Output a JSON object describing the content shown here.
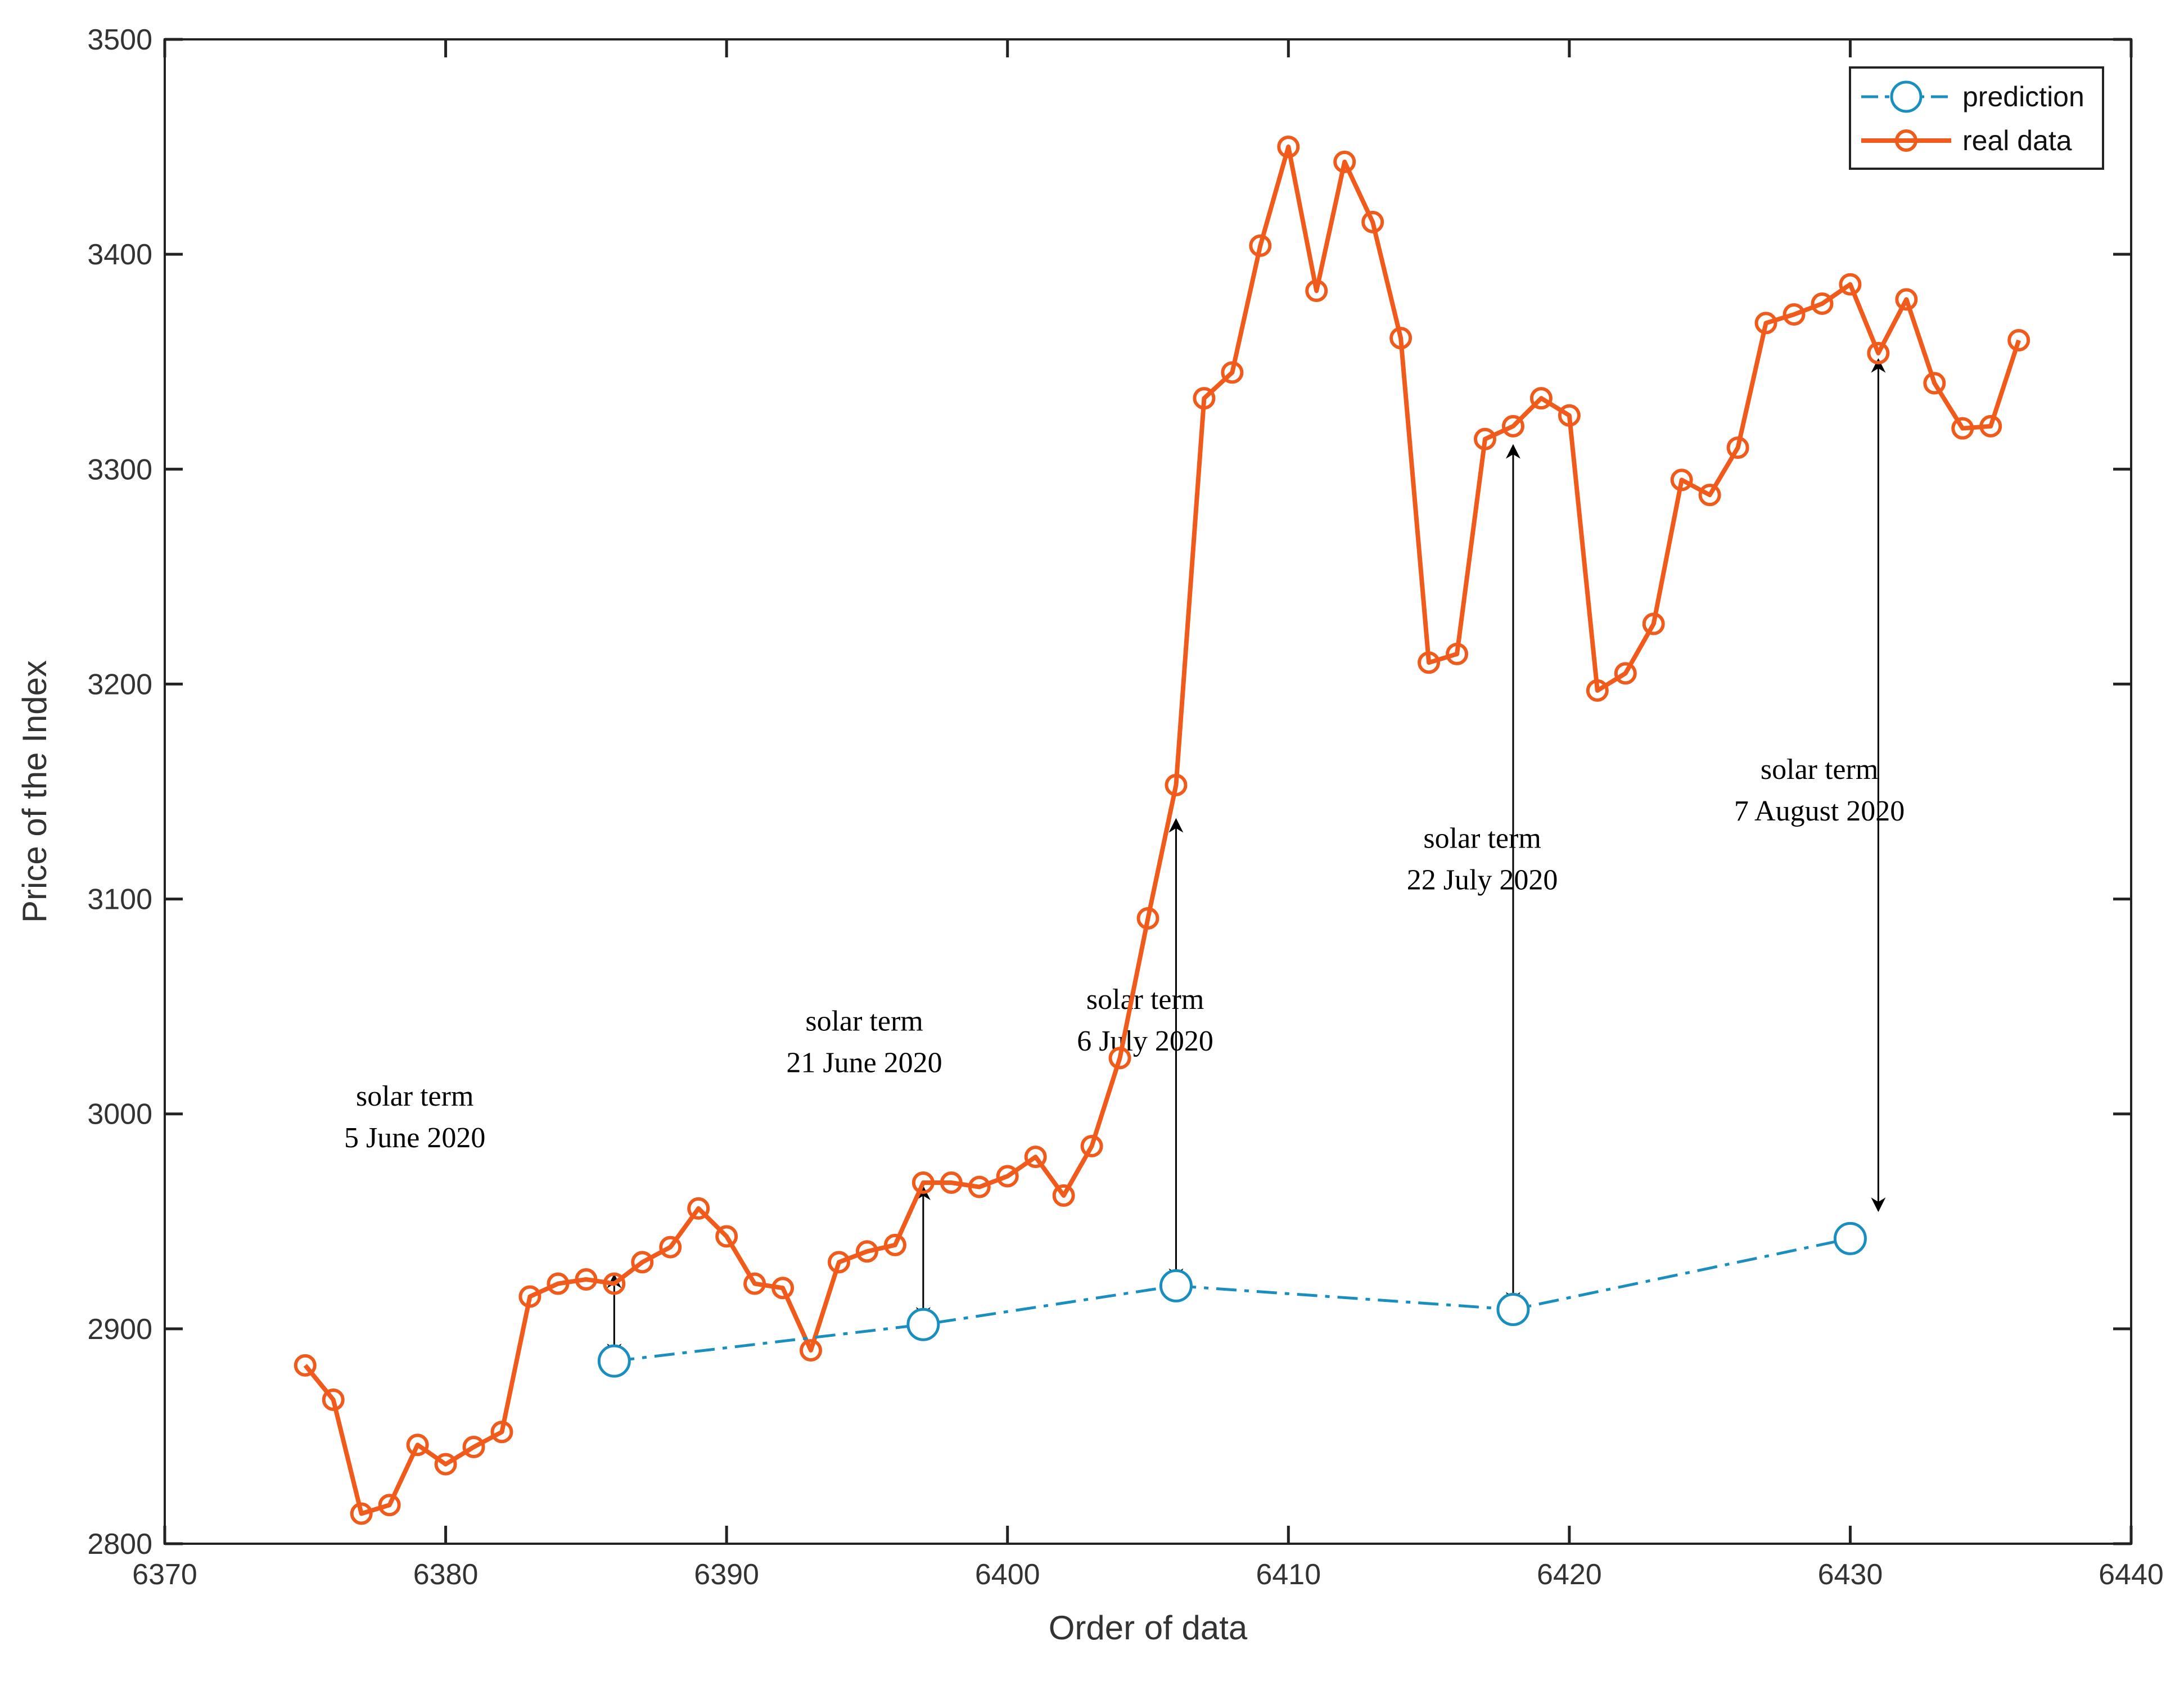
{
  "chart_data": {
    "type": "line",
    "title": "",
    "xlabel": "Order of data",
    "ylabel": "Price of the Index",
    "xlim": [
      6370,
      6440
    ],
    "ylim": [
      2800,
      3500
    ],
    "xticks": [
      6370,
      6380,
      6390,
      6400,
      6410,
      6420,
      6430,
      6440
    ],
    "yticks": [
      2800,
      2900,
      3000,
      3100,
      3200,
      3300,
      3400,
      3500
    ],
    "xtick_labels": [
      "6370",
      "6380",
      "6390",
      "6400",
      "6410",
      "6420",
      "6430",
      "6440"
    ],
    "ytick_labels": [
      "2800",
      "2900",
      "3000",
      "3100",
      "3200",
      "3300",
      "3400",
      "3500"
    ],
    "grid": false,
    "legend_position": "top-right",
    "series": [
      {
        "name": "prediction",
        "color": "#1a8fbf",
        "style": "dash-dot",
        "marker": "circle",
        "x": [
          6386,
          6397,
          6406,
          6418,
          6430
        ],
        "y": [
          2885,
          2902,
          2920,
          2909,
          2942
        ]
      },
      {
        "name": "real data",
        "color": "#f05a1a",
        "style": "solid",
        "marker": "circle",
        "x": [
          6375,
          6376,
          6377,
          6378,
          6379,
          6380,
          6381,
          6382,
          6383,
          6384,
          6385,
          6386,
          6387,
          6388,
          6389,
          6390,
          6391,
          6392,
          6393,
          6394,
          6395,
          6396,
          6397,
          6398,
          6399,
          6400,
          6401,
          6402,
          6403,
          6404,
          6405,
          6406,
          6407,
          6408,
          6409,
          6410,
          6411,
          6412,
          6413,
          6414,
          6415,
          6416,
          6417,
          6418,
          6419,
          6420,
          6421,
          6422,
          6423,
          6424,
          6425,
          6426,
          6427,
          6428,
          6429,
          6430,
          6431,
          6432,
          6433,
          6434,
          6435,
          6436
        ],
        "y": [
          2883,
          2867,
          2814,
          2818,
          2846,
          2837,
          2845,
          2852,
          2915,
          2921,
          2923,
          2921,
          2931,
          2938,
          2956,
          2943,
          2921,
          2919,
          2890,
          2931,
          2936,
          2939,
          2968,
          2968,
          2966,
          2971,
          2980,
          2962,
          2985,
          3026,
          3091,
          3153,
          3333,
          3345,
          3404,
          3450,
          3383,
          3443,
          3415,
          3361,
          3210,
          3214,
          3314,
          3320,
          3333,
          3325,
          3197,
          3205,
          3228,
          3295,
          3288,
          3310,
          3368,
          3372,
          3377,
          3386,
          3354,
          3379,
          3340,
          3319,
          3320,
          3360
        ]
      }
    ],
    "annotations": [
      {
        "line1": "solar term",
        "line2": "5 June 2020",
        "x": 6386,
        "from": 2925,
        "to": 2887
      },
      {
        "line1": "solar term",
        "line2": "21 June 2020",
        "x": 6397,
        "from": 2966,
        "to": 2904
      },
      {
        "line1": "solar term",
        "line2": "6 July 2020",
        "x": 6406,
        "from": 3137,
        "to": 2922
      },
      {
        "line1": "solar term",
        "line2": "22 July 2020",
        "x": 6418,
        "from": 3311,
        "to": 2911
      },
      {
        "line1": "solar term",
        "line2": "7 August 2020",
        "x": 6431,
        "from": 3351,
        "to": 2955
      }
    ]
  }
}
